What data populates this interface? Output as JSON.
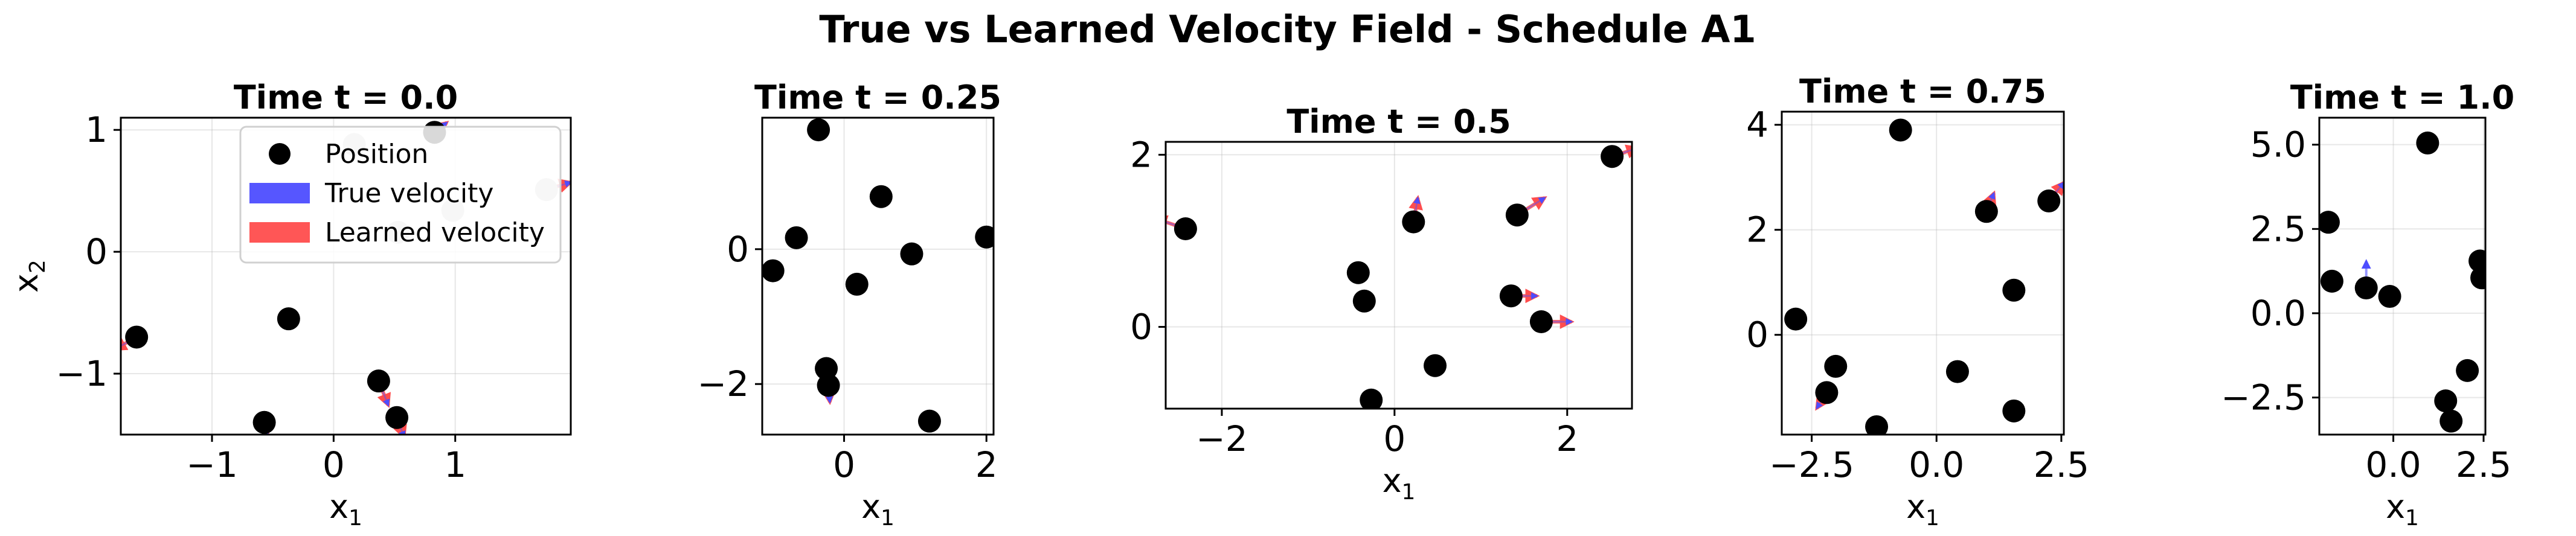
{
  "title": "True vs Learned Velocity Field - Schedule A1",
  "legend": {
    "placement": "upper-right of first panel",
    "entries": [
      {
        "label": "Position",
        "color": "#000000",
        "kind": "marker"
      },
      {
        "label": "True velocity",
        "color": "#4d4dff",
        "kind": "arrow"
      },
      {
        "label": "Learned velocity",
        "color": "#ff4d4d",
        "kind": "arrow"
      }
    ]
  },
  "colors": {
    "true_velocity": "#4d4dff",
    "learned_velocity": "#ff4d4d",
    "overlap": "#b3205a",
    "position": "#000000",
    "faded_position": "#c8c8c8"
  },
  "chart_data": [
    {
      "type": "scatter",
      "title": "Time t = 0.0",
      "grid": true,
      "xlabel": "x",
      "xlabel_sub": "1",
      "ylabel": "x",
      "ylabel_sub": "2",
      "xlim": [
        -1.75,
        1.95
      ],
      "ylim": [
        -1.5,
        1.1
      ],
      "xticks": [
        -1,
        0,
        1
      ],
      "xtick_labels": [
        "−1",
        "0",
        "1"
      ],
      "yticks": [
        -1,
        0,
        1
      ],
      "ytick_labels": [
        "−1",
        "0",
        "1"
      ],
      "points": [
        {
          "x": -1.62,
          "y": -0.7,
          "dx": -0.18,
          "dy": -0.1
        },
        {
          "x": -0.57,
          "y": -1.4,
          "dx": 0.02,
          "dy": -0.12
        },
        {
          "x": -0.37,
          "y": -0.55,
          "dx": 0.0,
          "dy": 0.0
        },
        {
          "x": 0.37,
          "y": -1.06,
          "dx": 0.08,
          "dy": -0.2
        },
        {
          "x": 0.52,
          "y": -1.36,
          "dx": 0.06,
          "dy": -0.16
        },
        {
          "x": 0.83,
          "y": 0.98,
          "dx": 0.1,
          "dy": 0.08
        },
        {
          "x": 0.17,
          "y": 0.88,
          "faded": true,
          "dx": 0,
          "dy": 0
        },
        {
          "x": 0.53,
          "y": 0.16,
          "faded": true,
          "dx": 0,
          "dy": 0
        },
        {
          "x": 0.98,
          "y": 0.34,
          "faded": true,
          "dx": 0,
          "dy": 0
        },
        {
          "x": 1.75,
          "y": 0.51,
          "faded": true,
          "dx": 0.2,
          "dy": 0.06
        }
      ]
    },
    {
      "type": "scatter",
      "title": "Time t = 0.25",
      "grid": true,
      "xlabel": "x",
      "xlabel_sub": "1",
      "ylabel": "",
      "ylabel_sub": "",
      "xlim": [
        -1.15,
        2.1
      ],
      "ylim": [
        -2.75,
        1.95
      ],
      "xticks": [
        0,
        2
      ],
      "xtick_labels": [
        "0",
        "2"
      ],
      "yticks": [
        -2,
        0
      ],
      "ytick_labels": [
        "−2",
        "0"
      ],
      "points": [
        {
          "x": -1.0,
          "y": -0.32,
          "dx": 0,
          "dy": 0
        },
        {
          "x": -0.67,
          "y": 0.17,
          "dx": 0,
          "dy": 0
        },
        {
          "x": -0.36,
          "y": 1.77,
          "dx": 0,
          "dy": 0.05
        },
        {
          "x": -0.25,
          "y": -1.77,
          "dx": 0,
          "dy": 0
        },
        {
          "x": -0.22,
          "y": -2.02,
          "dx": 0.02,
          "dy": -0.25
        },
        {
          "x": 0.18,
          "y": -0.52,
          "dx": 0,
          "dy": 0
        },
        {
          "x": 0.52,
          "y": 0.78,
          "dx": 0,
          "dy": 0
        },
        {
          "x": 0.95,
          "y": -0.07,
          "dx": 0,
          "dy": 0
        },
        {
          "x": 1.2,
          "y": -2.55,
          "dx": 0,
          "dy": 0
        },
        {
          "x": 2.0,
          "y": 0.18,
          "dx": 0,
          "dy": 0
        }
      ]
    },
    {
      "type": "scatter",
      "title": "Time t = 0.5",
      "grid": true,
      "xlabel": "x",
      "xlabel_sub": "1",
      "ylabel": "",
      "ylabel_sub": "",
      "xlim": [
        -2.65,
        2.75
      ],
      "ylim": [
        -0.95,
        2.15
      ],
      "xticks": [
        -2,
        0,
        2
      ],
      "xtick_labels": [
        "−2",
        "0",
        "2"
      ],
      "yticks": [
        0,
        2
      ],
      "ytick_labels": [
        "0",
        "2"
      ],
      "points": [
        {
          "x": -2.42,
          "y": 1.14,
          "dx": -0.35,
          "dy": 0.12
        },
        {
          "x": -0.42,
          "y": 0.63,
          "dx": 0,
          "dy": 0
        },
        {
          "x": -0.35,
          "y": 0.3,
          "dx": 0,
          "dy": 0
        },
        {
          "x": -0.27,
          "y": -0.85,
          "dx": 0,
          "dy": 0
        },
        {
          "x": 0.22,
          "y": 1.22,
          "dx": 0.05,
          "dy": 0.28
        },
        {
          "x": 0.47,
          "y": -0.45,
          "dx": 0,
          "dy": 0
        },
        {
          "x": 1.35,
          "y": 0.36,
          "dx": 0.3,
          "dy": 0.0
        },
        {
          "x": 1.42,
          "y": 1.3,
          "dx": 0.32,
          "dy": 0.2
        },
        {
          "x": 1.7,
          "y": 0.06,
          "dx": 0.35,
          "dy": 0.0
        },
        {
          "x": 2.52,
          "y": 1.98,
          "dx": 0.3,
          "dy": 0.1
        }
      ]
    },
    {
      "type": "scatter",
      "title": "Time t = 0.75",
      "grid": true,
      "xlabel": "x",
      "xlabel_sub": "1",
      "ylabel": "",
      "ylabel_sub": "",
      "xlim": [
        -3.1,
        2.55
      ],
      "ylim": [
        -1.9,
        4.25
      ],
      "xticks": [
        -2.5,
        0,
        2.5
      ],
      "xtick_labels": [
        "−2.5",
        "0.0",
        "2.5"
      ],
      "yticks": [
        0,
        2,
        4
      ],
      "ytick_labels": [
        "0",
        "2",
        "4"
      ],
      "points": [
        {
          "x": -2.82,
          "y": 0.3,
          "dx": 0,
          "dy": 0
        },
        {
          "x": -2.2,
          "y": -1.1,
          "dx": -0.2,
          "dy": -0.3
        },
        {
          "x": -2.02,
          "y": -0.6,
          "dx": 0,
          "dy": 0
        },
        {
          "x": -1.2,
          "y": -1.75,
          "dx": 0,
          "dy": 0
        },
        {
          "x": -0.72,
          "y": 3.9,
          "dx": 0,
          "dy": 0
        },
        {
          "x": 0.42,
          "y": -0.7,
          "dx": 0,
          "dy": 0
        },
        {
          "x": 1.0,
          "y": 2.35,
          "dx": 0.15,
          "dy": 0.35
        },
        {
          "x": 1.55,
          "y": 0.85,
          "dx": 0,
          "dy": 0
        },
        {
          "x": 1.55,
          "y": -1.45,
          "dx": 0,
          "dy": 0
        },
        {
          "x": 2.25,
          "y": 2.55,
          "dx": 0.3,
          "dy": 0.35
        }
      ]
    },
    {
      "type": "scatter",
      "title": "Time t = 1.0",
      "grid": true,
      "xlabel": "x",
      "xlabel_sub": "1",
      "ylabel": "",
      "ylabel_sub": "",
      "xlim": [
        -2.05,
        2.55
      ],
      "ylim": [
        -3.6,
        5.8
      ],
      "xticks": [
        0,
        2.5
      ],
      "xtick_labels": [
        "0.0",
        "2.5"
      ],
      "yticks": [
        -2.5,
        0,
        2.5,
        5
      ],
      "ytick_labels": [
        "−2.5",
        "0.0",
        "2.5",
        "5.0"
      ],
      "points": [
        {
          "x": -1.8,
          "y": 2.7,
          "dx": 0,
          "dy": 0
        },
        {
          "x": -1.7,
          "y": 0.95,
          "dx": 0,
          "dy": 0
        },
        {
          "x": -0.75,
          "y": 0.75,
          "dx": 0,
          "dy": 0.8,
          "trueOnly": true
        },
        {
          "x": -0.1,
          "y": 0.5,
          "dx": 0,
          "dy": 0
        },
        {
          "x": 0.95,
          "y": 5.05,
          "dx": 0,
          "dy": 0
        },
        {
          "x": 1.45,
          "y": -2.6,
          "dx": 0,
          "dy": 0
        },
        {
          "x": 1.6,
          "y": -3.2,
          "dx": 0,
          "dy": 0
        },
        {
          "x": 2.05,
          "y": -1.7,
          "dx": 0,
          "dy": 0
        },
        {
          "x": 2.4,
          "y": 1.55,
          "dx": 0,
          "dy": 0
        },
        {
          "x": 2.45,
          "y": 1.05,
          "dx": 0,
          "dy": 0
        }
      ]
    }
  ]
}
